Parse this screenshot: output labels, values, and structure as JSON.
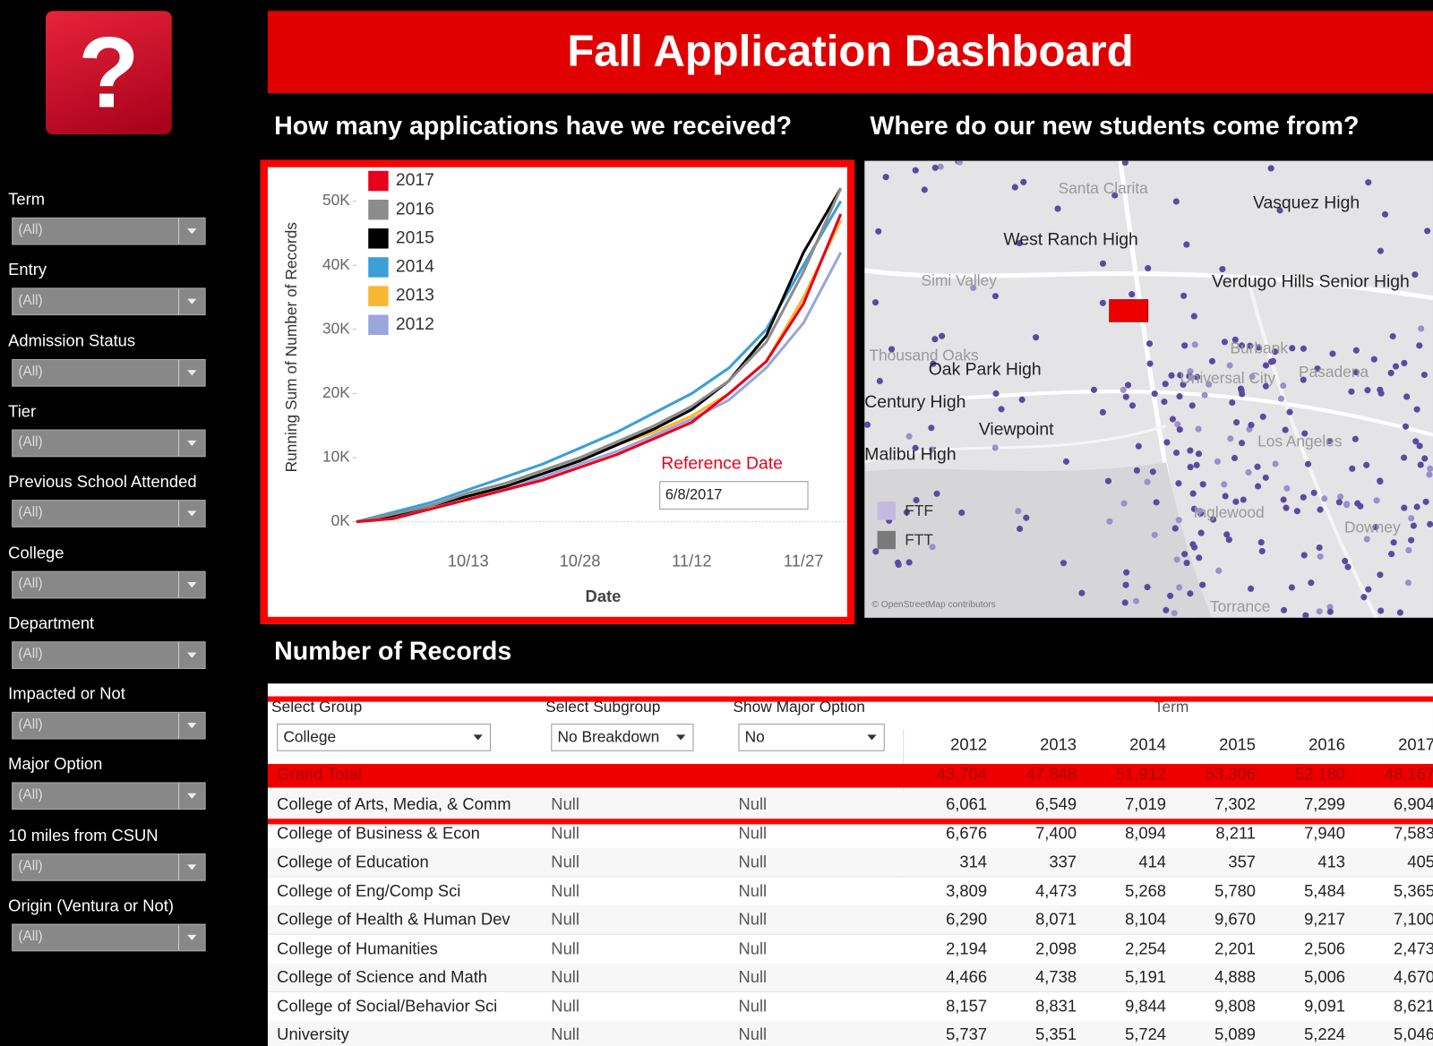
{
  "header": {
    "logo": "?",
    "title": "Fall Application Dashboard"
  },
  "sidebar": {
    "filters": [
      {
        "label": "Term",
        "value": "(All)"
      },
      {
        "label": "Entry",
        "value": "(All)"
      },
      {
        "label": "Admission Status",
        "value": "(All)"
      },
      {
        "label": "Tier",
        "value": "(All)"
      },
      {
        "label": "Previous School Attended",
        "value": "(All)"
      },
      {
        "label": "College",
        "value": "(All)"
      },
      {
        "label": "Department",
        "value": "(All)"
      },
      {
        "label": "Impacted or Not",
        "value": "(All)"
      },
      {
        "label": "Major Option",
        "value": "(All)"
      },
      {
        "label": "10 miles from CSUN",
        "value": "(All)"
      },
      {
        "label": "Origin (Ventura or Not)",
        "value": "(All)"
      }
    ]
  },
  "chart_data": {
    "type": "line",
    "title": "How many applications have we received?",
    "y_label": "Running Sum of Number of Records",
    "x_label": "Date",
    "categories": [
      null,
      null,
      null,
      "10/13",
      null,
      null,
      "10/28",
      null,
      null,
      "11/12",
      null,
      null,
      "11/27",
      null
    ],
    "series": [
      {
        "name": "2017",
        "color": "#e8001c",
        "values": [
          0,
          500,
          2000,
          3500,
          5000,
          6500,
          8500,
          10500,
          13000,
          15500,
          20000,
          25000,
          34000,
          48000
        ]
      },
      {
        "name": "2016",
        "color": "#8c8c8c",
        "values": [
          0,
          1200,
          2500,
          4500,
          6000,
          8000,
          10000,
          12500,
          15000,
          18000,
          22000,
          28000,
          39000,
          52000
        ]
      },
      {
        "name": "2015",
        "color": "#000000",
        "values": [
          0,
          1000,
          2500,
          4000,
          5500,
          7500,
          9500,
          12000,
          14500,
          17500,
          22000,
          29000,
          42000,
          52000
        ]
      },
      {
        "name": "2014",
        "color": "#3b9fd8",
        "values": [
          0,
          1500,
          3000,
          5000,
          7000,
          9000,
          11500,
          14000,
          17000,
          20000,
          24000,
          30000,
          40000,
          50000
        ]
      },
      {
        "name": "2013",
        "color": "#f7b733",
        "values": [
          0,
          1000,
          2500,
          4000,
          5500,
          7500,
          9500,
          12000,
          14000,
          16500,
          20000,
          25000,
          35000,
          47000
        ]
      },
      {
        "name": "2012",
        "color": "#9aa6dc",
        "values": [
          0,
          800,
          2000,
          3500,
          5000,
          7000,
          9000,
          11000,
          13500,
          16000,
          19000,
          24000,
          31000,
          42000
        ]
      }
    ],
    "ylim": [
      0,
      55000
    ],
    "yticks": [
      {
        "value": 0,
        "label": "0K"
      },
      {
        "value": 10000,
        "label": "10K"
      },
      {
        "value": 20000,
        "label": "20K"
      },
      {
        "value": 30000,
        "label": "30K"
      },
      {
        "value": 40000,
        "label": "40K"
      },
      {
        "value": 50000,
        "label": "50K"
      }
    ],
    "annotation": "Reference Date",
    "reference_date": "6/8/2017"
  },
  "map": {
    "title": "Where do our new students come from?",
    "labels": [
      "Santa Clarita",
      "Vasquez High",
      "West Ranch High",
      "Simi Valley",
      "Verdugo Hills Senior High",
      "Burbank",
      "Thousand Oaks",
      "Oak Park High",
      "Universal City",
      "Pasadena",
      "Century High",
      "Viewpoint",
      "Malibu High",
      "Los Angeles",
      "Inglewood",
      "Downey",
      "Torrance"
    ],
    "legend": [
      {
        "name": "FTF",
        "color": "#c3b9e0"
      },
      {
        "name": "FTT",
        "color": "#7a7a7a"
      }
    ],
    "credit": "© OpenStreetMap contributors"
  },
  "table": {
    "title": "Number of Records",
    "controls": [
      {
        "label": "Select Group",
        "value": "College"
      },
      {
        "label": "Select Subgroup",
        "value": "No Breakdown"
      },
      {
        "label": "Show Major Option",
        "value": "No"
      }
    ],
    "term_label": "Term",
    "years": [
      "2012",
      "2013",
      "2014",
      "2015",
      "2016",
      "2017"
    ],
    "grand_total": {
      "label": "Grand Total",
      "values": [
        "43,704",
        "47,848",
        "51,912",
        "53,306",
        "52,180",
        "48,167"
      ]
    },
    "rows": [
      {
        "group": "College of Arts, Media, & Comm",
        "subgroup": "Null",
        "major": "Null",
        "values": [
          "6,061",
          "6,549",
          "7,019",
          "7,302",
          "7,299",
          "6,904"
        ]
      },
      {
        "group": "College of Business & Econ",
        "subgroup": "Null",
        "major": "Null",
        "values": [
          "6,676",
          "7,400",
          "8,094",
          "8,211",
          "7,940",
          "7,583"
        ]
      },
      {
        "group": "College of Education",
        "subgroup": "Null",
        "major": "Null",
        "values": [
          "314",
          "337",
          "414",
          "357",
          "413",
          "405"
        ]
      },
      {
        "group": "College of Eng/Comp Sci",
        "subgroup": "Null",
        "major": "Null",
        "values": [
          "3,809",
          "4,473",
          "5,268",
          "5,780",
          "5,484",
          "5,365"
        ]
      },
      {
        "group": "College of Health & Human Dev",
        "subgroup": "Null",
        "major": "Null",
        "values": [
          "6,290",
          "8,071",
          "8,104",
          "9,670",
          "9,217",
          "7,100"
        ]
      },
      {
        "group": "College of Humanities",
        "subgroup": "Null",
        "major": "Null",
        "values": [
          "2,194",
          "2,098",
          "2,254",
          "2,201",
          "2,506",
          "2,473"
        ]
      },
      {
        "group": "College of Science and Math",
        "subgroup": "Null",
        "major": "Null",
        "values": [
          "4,466",
          "4,738",
          "5,191",
          "4,888",
          "5,006",
          "4,670"
        ]
      },
      {
        "group": "College of Social/Behavior Sci",
        "subgroup": "Null",
        "major": "Null",
        "values": [
          "8,157",
          "8,831",
          "9,844",
          "9,808",
          "9,091",
          "8,621"
        ]
      },
      {
        "group": "University",
        "subgroup": "Null",
        "major": "Null",
        "values": [
          "5,737",
          "5,351",
          "5,724",
          "5,089",
          "5,224",
          "5,046"
        ]
      }
    ]
  }
}
